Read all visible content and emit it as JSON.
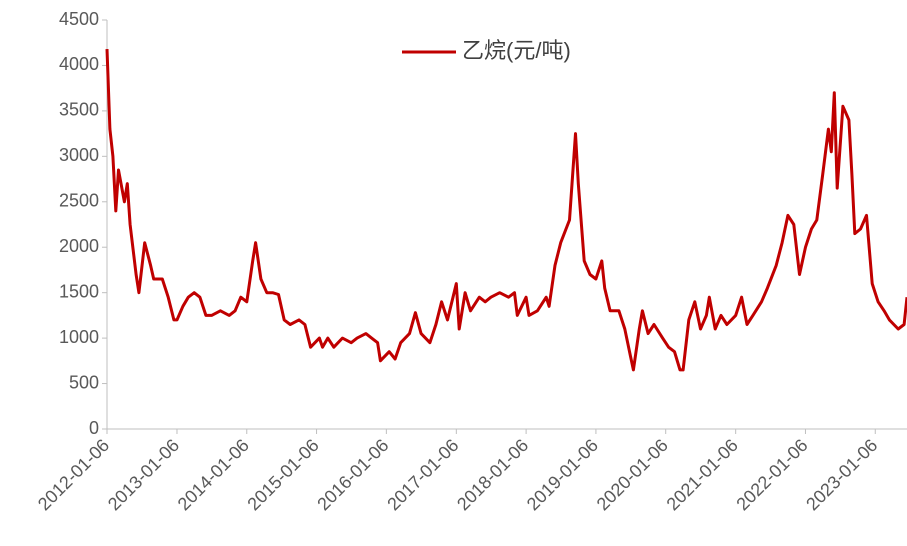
{
  "chart_data": {
    "type": "line",
    "x": [
      "2012-01-06",
      "2012-01-21",
      "2012-02-06",
      "2012-02-21",
      "2012-03-06",
      "2012-04-06",
      "2012-04-21",
      "2012-05-06",
      "2012-06-06",
      "2012-06-21",
      "2012-07-21",
      "2012-08-21",
      "2012-09-06",
      "2012-10-21",
      "2012-11-21",
      "2012-12-21",
      "2013-01-06",
      "2013-02-06",
      "2013-03-06",
      "2013-04-06",
      "2013-05-06",
      "2013-06-06",
      "2013-07-06",
      "2013-08-21",
      "2013-10-06",
      "2013-11-06",
      "2013-12-06",
      "2014-01-06",
      "2014-02-06",
      "2014-02-21",
      "2014-03-21",
      "2014-04-21",
      "2014-05-21",
      "2014-06-21",
      "2014-07-21",
      "2014-08-21",
      "2014-10-06",
      "2014-11-06",
      "2014-12-06",
      "2015-01-21",
      "2015-02-06",
      "2015-03-06",
      "2015-04-06",
      "2015-05-21",
      "2015-07-06",
      "2015-08-06",
      "2015-09-21",
      "2015-10-21",
      "2015-11-21",
      "2015-12-06",
      "2016-01-21",
      "2016-02-21",
      "2016-03-21",
      "2016-05-06",
      "2016-06-06",
      "2016-07-06",
      "2016-08-21",
      "2016-09-21",
      "2016-10-21",
      "2016-11-21",
      "2017-01-06",
      "2017-01-21",
      "2017-02-21",
      "2017-03-21",
      "2017-05-06",
      "2017-06-06",
      "2017-07-06",
      "2017-08-21",
      "2017-10-06",
      "2017-11-06",
      "2017-11-21",
      "2018-01-06",
      "2018-01-21",
      "2018-03-06",
      "2018-04-21",
      "2018-05-06",
      "2018-06-06",
      "2018-07-06",
      "2018-08-21",
      "2018-09-21",
      "2018-10-06",
      "2018-11-06",
      "2018-12-06",
      "2019-01-06",
      "2019-02-06",
      "2019-02-21",
      "2019-03-21",
      "2019-05-06",
      "2019-06-06",
      "2019-07-06",
      "2019-07-21",
      "2019-08-21",
      "2019-09-06",
      "2019-10-06",
      "2019-11-06",
      "2019-12-21",
      "2020-01-21",
      "2020-02-21",
      "2020-03-21",
      "2020-04-06",
      "2020-05-06",
      "2020-06-06",
      "2020-07-06",
      "2020-08-06",
      "2020-08-21",
      "2020-09-21",
      "2020-10-21",
      "2020-11-21",
      "2021-01-06",
      "2021-02-06",
      "2021-03-06",
      "2021-04-06",
      "2021-05-21",
      "2021-06-21",
      "2021-08-06",
      "2021-09-06",
      "2021-10-06",
      "2021-11-06",
      "2021-12-06",
      "2022-01-06",
      "2022-02-06",
      "2022-03-06",
      "2022-04-06",
      "2022-05-06",
      "2022-05-21",
      "2022-06-06",
      "2022-06-21",
      "2022-07-21",
      "2022-08-21",
      "2022-09-06",
      "2022-09-21",
      "2022-10-21",
      "2022-11-21",
      "2022-12-21",
      "2023-01-21",
      "2023-02-21",
      "2023-03-21",
      "2023-05-06",
      "2023-06-06",
      "2023-06-21"
    ],
    "series": [
      {
        "name": "乙烷(元/吨)",
        "color": "#c00000",
        "values": [
          4180,
          3300,
          3000,
          2400,
          2850,
          2500,
          2700,
          2250,
          1700,
          1500,
          2050,
          1800,
          1650,
          1650,
          1450,
          1200,
          1200,
          1350,
          1450,
          1500,
          1450,
          1250,
          1250,
          1300,
          1250,
          1300,
          1450,
          1400,
          1850,
          2050,
          1650,
          1500,
          1500,
          1480,
          1200,
          1150,
          1200,
          1150,
          900,
          1000,
          900,
          1000,
          900,
          1000,
          950,
          1000,
          1050,
          1000,
          950,
          750,
          850,
          770,
          950,
          1050,
          1280,
          1050,
          950,
          1150,
          1400,
          1200,
          1600,
          1100,
          1500,
          1300,
          1450,
          1400,
          1450,
          1500,
          1450,
          1500,
          1250,
          1450,
          1250,
          1300,
          1450,
          1350,
          1800,
          2050,
          2300,
          3250,
          2700,
          1850,
          1700,
          1650,
          1850,
          1550,
          1300,
          1300,
          1100,
          800,
          650,
          1100,
          1300,
          1050,
          1150,
          1000,
          900,
          850,
          650,
          650,
          1200,
          1400,
          1100,
          1250,
          1450,
          1100,
          1250,
          1150,
          1250,
          1450,
          1150,
          1250,
          1400,
          1550,
          1800,
          2050,
          2350,
          2250,
          1700,
          2000,
          2200,
          2300,
          2800,
          3300,
          3050,
          3700,
          2650,
          3550,
          3400,
          2800,
          2150,
          2200,
          2350,
          1600,
          1400,
          1300,
          1200,
          1100,
          1150,
          1450
        ]
      }
    ],
    "xlim": [
      "2012-01-06",
      "2023-06-21"
    ],
    "xticks": [
      "2012-01-06",
      "2013-01-06",
      "2014-01-06",
      "2015-01-06",
      "2016-01-06",
      "2017-01-06",
      "2018-01-06",
      "2019-01-06",
      "2020-01-06",
      "2021-01-06",
      "2022-01-06",
      "2023-01-06"
    ],
    "ylim": [
      0,
      4500
    ],
    "yticks": [
      0,
      500,
      1000,
      1500,
      2000,
      2500,
      3000,
      3500,
      4000,
      4500
    ],
    "grid": false,
    "legend": "top"
  }
}
